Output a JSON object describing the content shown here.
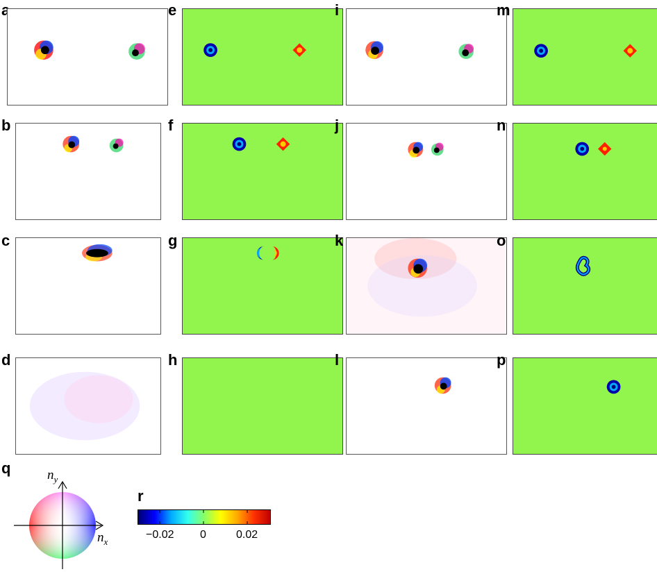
{
  "figure": {
    "panel_labels": {
      "a": "a",
      "b": "b",
      "c": "c",
      "d": "d",
      "e": "e",
      "f": "f",
      "g": "g",
      "h": "h",
      "i": "i",
      "j": "j",
      "k": "k",
      "l": "l",
      "m": "m",
      "n": "n",
      "o": "o",
      "p": "p",
      "q": "q",
      "r": "r"
    },
    "wheel": {
      "ny_label": "n",
      "ny_sub": "y",
      "nx_label": "n",
      "nx_sub": "x"
    },
    "colorbar": {
      "colors": [
        "#000070",
        "#0000ff",
        "#00aaff",
        "#33ffee",
        "#88ff66",
        "#ffff00",
        "#ffaa00",
        "#ff3300",
        "#c00000"
      ],
      "tick_labels": [
        "−0.02",
        "0",
        "0.02"
      ],
      "range": [
        -0.03,
        0.03
      ]
    },
    "background_green": "#92f54e"
  }
}
